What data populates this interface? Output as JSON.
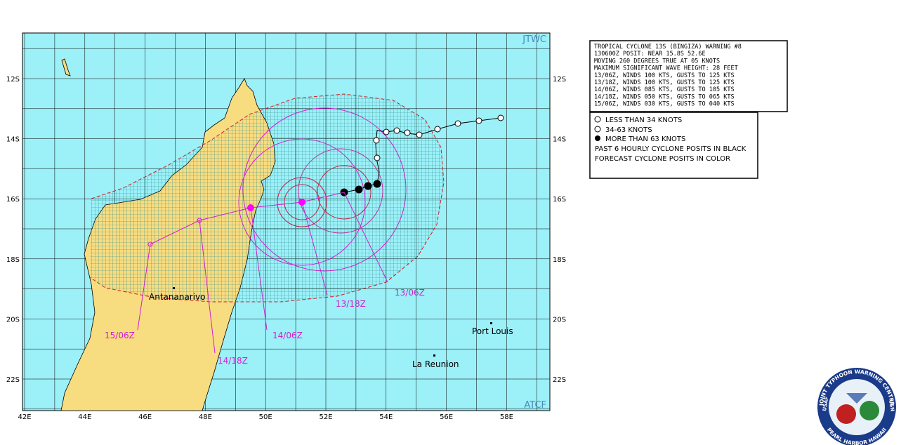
{
  "header": {
    "corner_top": "JTWC",
    "corner_bottom": "ATCF"
  },
  "lon_labels": [
    "42E",
    "44E",
    "46E",
    "48E",
    "50E",
    "52E",
    "54E",
    "56E",
    "58E"
  ],
  "lat_labels": [
    "12S",
    "14S",
    "16S",
    "18S",
    "20S",
    "22S"
  ],
  "warning": [
    "TROPICAL CYCLONE 13S (BINGIZA) WARNING #8",
    "130600Z POSIT: NEAR 15.8S 52.6E",
    "MOVING 260 DEGREES TRUE AT 05 KNOTS",
    "MAXIMUM SIGNIFICANT WAVE HEIGHT: 28 FEET",
    "13/06Z, WINDS 100 KTS, GUSTS TO 125 KTS",
    "13/18Z, WINDS 100 KTS, GUSTS TO 125 KTS",
    "14/06Z, WINDS 085 KTS, GUSTS TO 105 KTS",
    "14/18Z, WINDS 050 KTS, GUSTS TO 065 KTS",
    "15/06Z, WINDS 030 KTS, GUSTS TO 040 KTS"
  ],
  "legend": {
    "items": [
      "LESS THAN 34 KNOTS",
      "34-63 KNOTS",
      "MORE THAN 63 KNOTS"
    ],
    "notes": [
      "PAST 6 HOURLY CYCLONE POSITS IN BLACK",
      "FORECAST CYCLONE POSITS IN COLOR"
    ]
  },
  "places": [
    "Antananarivo",
    "Port Louis",
    "La Reunion"
  ],
  "forecast_labels": [
    "13/06Z",
    "13/18Z",
    "14/06Z",
    "14/18Z",
    "15/06Z"
  ],
  "logo": {
    "top": "JOINT TYPHOON WARNING CENTER",
    "bottom": "PEARL HARBOR HAWAII",
    "left": "USAF",
    "right": "USN"
  }
}
